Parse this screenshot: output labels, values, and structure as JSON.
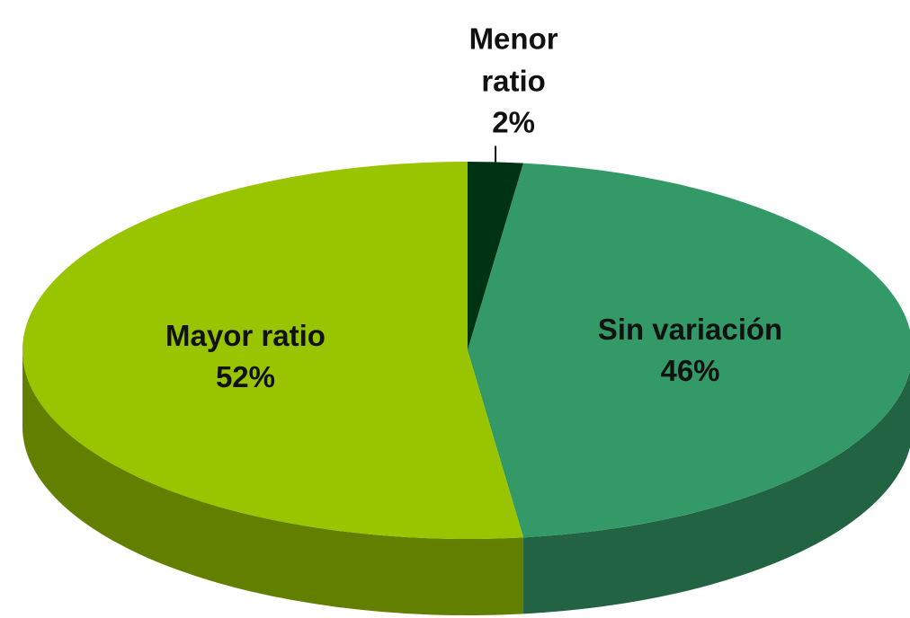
{
  "chart_data": {
    "type": "pie",
    "categories": [
      "Menor ratio",
      "Sin variación",
      "Mayor ratio"
    ],
    "values": [
      2,
      46,
      52
    ],
    "value_labels": [
      "2%",
      "46%",
      "52%"
    ],
    "colors": [
      "#003311",
      "#339966",
      "#99c400"
    ]
  }
}
